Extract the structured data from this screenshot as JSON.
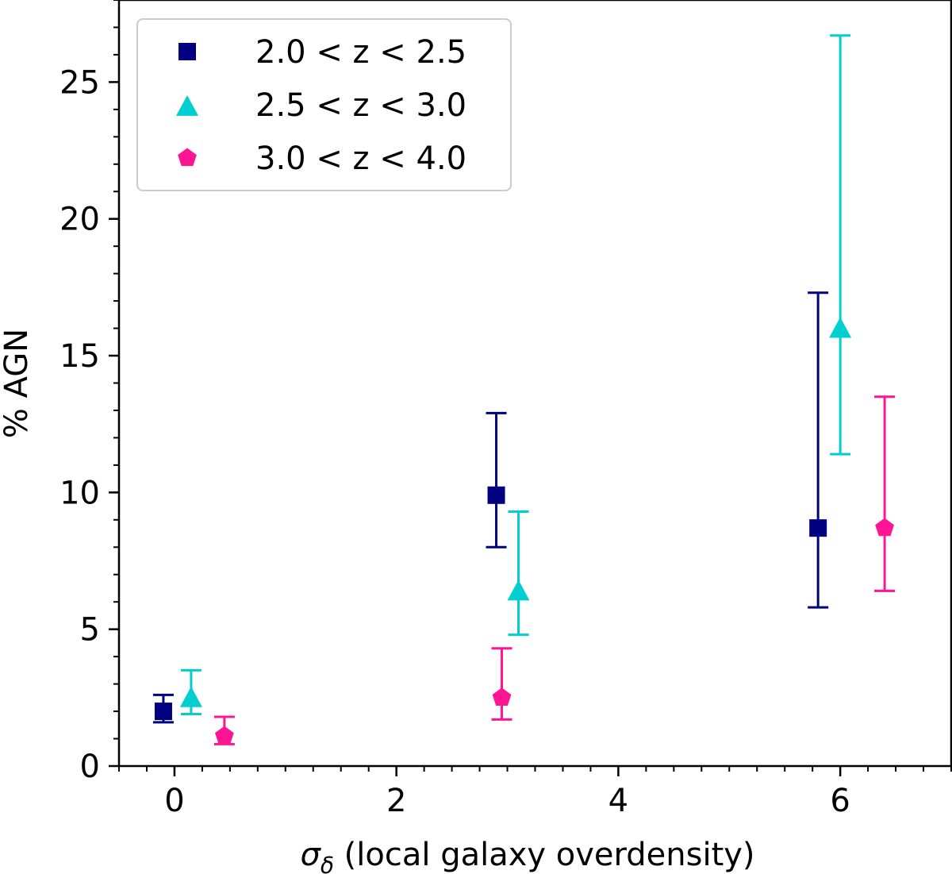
{
  "chart_data": {
    "type": "scatter",
    "xlabel_symbol": "σ",
    "xlabel_subscript": "δ",
    "xlabel_rest": " (local galaxy overdensity)",
    "ylabel": "% AGN",
    "xlim": [
      -0.5,
      7.0
    ],
    "ylim": [
      0,
      28
    ],
    "xticks": [
      0,
      2,
      4,
      6
    ],
    "yticks": [
      0,
      5,
      10,
      15,
      20,
      25
    ],
    "x_minor_step": 0.25,
    "y_minor_step": 1,
    "grid": false,
    "legend_position": "top-left",
    "series": [
      {
        "name": "2.0 < z < 2.5",
        "marker": "square",
        "color": "#000080",
        "points": [
          {
            "x": -0.1,
            "y": 2.0,
            "err_low": 1.6,
            "err_high": 2.6
          },
          {
            "x": 2.9,
            "y": 9.9,
            "err_low": 8.0,
            "err_high": 12.9
          },
          {
            "x": 5.8,
            "y": 8.7,
            "err_low": 5.8,
            "err_high": 17.3
          }
        ]
      },
      {
        "name": "2.5 < z < 3.0",
        "marker": "triangle",
        "color": "#00CED1",
        "points": [
          {
            "x": 0.15,
            "y": 2.5,
            "err_low": 1.9,
            "err_high": 3.5
          },
          {
            "x": 3.1,
            "y": 6.4,
            "err_low": 4.8,
            "err_high": 9.3
          },
          {
            "x": 6.0,
            "y": 16.0,
            "err_low": 11.4,
            "err_high": 26.7
          }
        ]
      },
      {
        "name": "3.0 < z < 4.0",
        "marker": "pentagon",
        "color": "#FF1493",
        "points": [
          {
            "x": 0.45,
            "y": 1.1,
            "err_low": 0.8,
            "err_high": 1.8
          },
          {
            "x": 2.95,
            "y": 2.5,
            "err_low": 1.7,
            "err_high": 4.3
          },
          {
            "x": 6.4,
            "y": 8.7,
            "err_low": 6.4,
            "err_high": 13.5
          }
        ]
      }
    ]
  }
}
